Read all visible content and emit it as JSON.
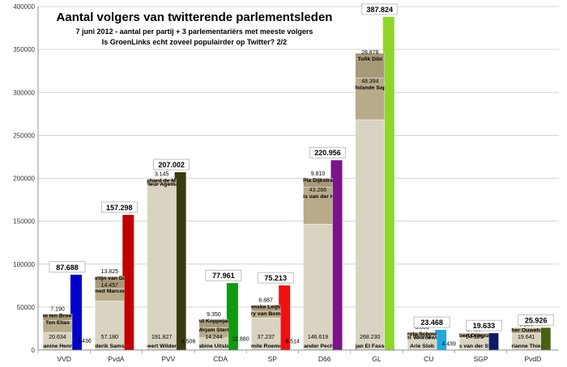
{
  "chart_data": {
    "type": "bar",
    "title": "Aantal volgers van twitterende parlementsleden",
    "subtitle_1": "7 juni 2012 - aantal per partij + 3 parlementariërs met meeste volgers",
    "subtitle_2": "Is GroenLinks echt zoveel populairder op Twitter? 2/2",
    "ylim": [
      0,
      400000
    ],
    "yticks": [
      "0",
      "50000",
      "100000",
      "150000",
      "200000",
      "250000",
      "300000",
      "350000",
      "400000"
    ],
    "grid": true,
    "colors": {
      "stack": "#d9d4c1",
      "stack_dark": "#b8ab8a",
      "stack_top": "#a89a78",
      "VVD": "#0000c8",
      "PvdA": "#c00000",
      "PVV": "#3a3a10",
      "CDA": "#109a10",
      "SP": "#ee1111",
      "D66": "#7a1488",
      "GL": "#8ed62a",
      "CU": "#1fa8e0",
      "SGP": "#0e1a66",
      "PvdD": "#4a6010"
    },
    "parties": [
      {
        "name": "VVD",
        "total": 87688,
        "total_label": "87.688",
        "residual": 9436,
        "residual_label": "9.436",
        "members": [
          {
            "name": "Jeanine Hennis",
            "value": 20634,
            "label": "20.634"
          },
          {
            "name": "Ton Elias",
            "value": 14000,
            "label": ""
          },
          {
            "name": "Han ten Broeke",
            "value": 7190,
            "label": "7.190"
          }
        ]
      },
      {
        "name": "PvdA",
        "total": 157298,
        "total_label": "157.298",
        "residual": 0,
        "residual_label": "",
        "members": [
          {
            "name": "Diederik Samsom",
            "value": 57180,
            "label": "57.180"
          },
          {
            "name": "Ahmed Marcouch",
            "value": 14457,
            "label": "14.457"
          },
          {
            "name": "Martijn van Dam",
            "value": 13825,
            "label": "13.825"
          }
        ]
      },
      {
        "name": "PVV",
        "total": 207002,
        "total_label": "207.002",
        "residual": 8506,
        "residual_label": "8.506",
        "members": [
          {
            "name": "Geert Wilders",
            "value": 191827,
            "label": "191.827"
          },
          {
            "name": "Fleur Agema",
            "value": 4000,
            "label": ""
          },
          {
            "name": "Richard de Mos",
            "value": 3145,
            "label": "3.145"
          }
        ]
      },
      {
        "name": "CDA",
        "total": 77961,
        "total_label": "77.961",
        "residual": 12880,
        "residual_label": "12.880",
        "members": [
          {
            "name": "Sabine Uitslag",
            "value": 14244,
            "label": "14.244"
          },
          {
            "name": "Mirjam Sterk",
            "value": 12000,
            "label": ""
          },
          {
            "name": "Ad Koppejan",
            "value": 9350,
            "label": "9.350"
          }
        ]
      },
      {
        "name": "SP",
        "total": 75213,
        "total_label": "75.213",
        "residual": 8514,
        "residual_label": "8.514",
        "members": [
          {
            "name": "Emile Roemer",
            "value": 37237,
            "label": "37.237"
          },
          {
            "name": "Harry van Bommel",
            "value": 8000,
            "label": ""
          },
          {
            "name": "Renske Leijten",
            "value": 6887,
            "label": "6.887"
          }
        ]
      },
      {
        "name": "D66",
        "total": 220956,
        "total_label": "220.956",
        "residual": 0,
        "residual_label": "",
        "members": [
          {
            "name": "Alexander Pechtold",
            "value": 146619,
            "label": "146.619"
          },
          {
            "name": "Boris van der Ham",
            "value": 43266,
            "label": "43.266"
          },
          {
            "name": "Pia Dijkstra",
            "value": 9810,
            "label": "9.810"
          }
        ]
      },
      {
        "name": "GL",
        "total": 387824,
        "total_label": "387.824",
        "residual": 0,
        "residual_label": "",
        "members": [
          {
            "name": "Arjan El Fassed",
            "value": 268230,
            "label": "268.230"
          },
          {
            "name": "Jolande Sap",
            "value": 48394,
            "label": "48.394"
          },
          {
            "name": "Tofik Dibi",
            "value": 28878,
            "label": "28.878"
          }
        ]
      },
      {
        "name": "CU",
        "total": 23468,
        "total_label": "23.468",
        "residual": 4439,
        "residual_label": "4.439",
        "members": [
          {
            "name": "Arie Slob",
            "value": 15973,
            "label": "15.973"
          },
          {
            "name": "Joel Voordewind",
            "value": 1500,
            "label": ""
          },
          {
            "name": "Carola Schouten",
            "value": 3056,
            "label": "3.056"
          }
        ]
      },
      {
        "name": "SGP",
        "total": 19633,
        "total_label": "19.633",
        "residual": 0,
        "residual_label": "",
        "members": [
          {
            "name": "Kees van der Staaij",
            "value": 14135,
            "label": "14.135"
          },
          {
            "name": "Elbert Dijkgraaf",
            "value": 5498,
            "label": "5.498"
          }
        ]
      },
      {
        "name": "PvdD",
        "total": 25926,
        "total_label": "25.926",
        "residual": 0,
        "residual_label": "",
        "members": [
          {
            "name": "Marianne Thieme",
            "value": 19641,
            "label": "19.641"
          },
          {
            "name": "Esther Ouwehand",
            "value": 6285,
            "label": "6.285"
          }
        ]
      }
    ]
  }
}
